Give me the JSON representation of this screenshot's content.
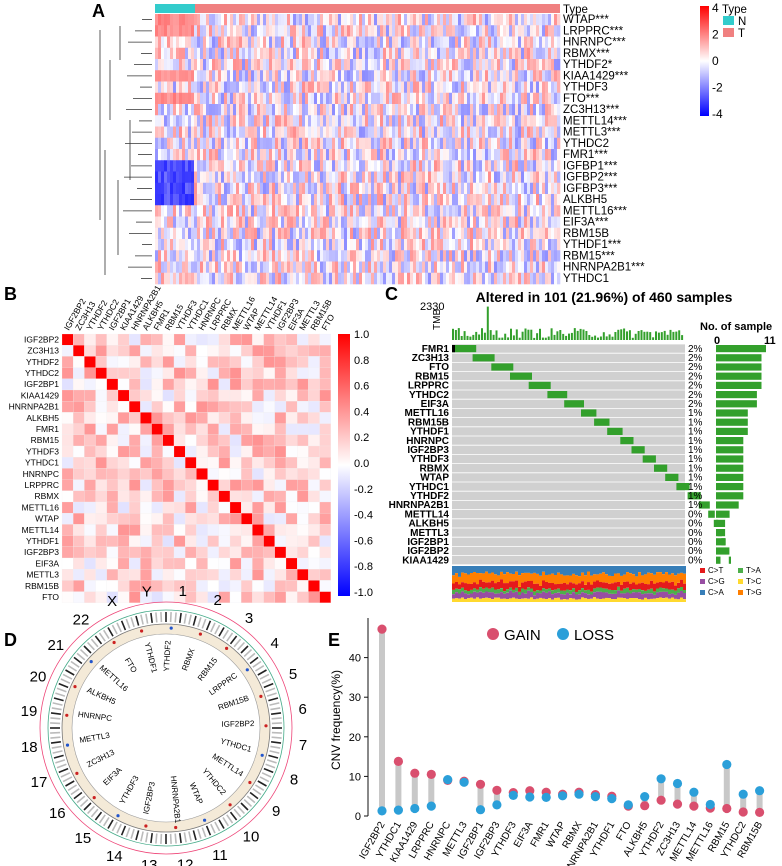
{
  "panels": {
    "A": "A",
    "B": "B",
    "C": "C",
    "D": "D",
    "E": "E"
  },
  "heatmap": {
    "type_label": "Type",
    "legend_title": "Type",
    "legend_groups": [
      {
        "label": "N",
        "color": "#33cccc"
      },
      {
        "label": "T",
        "color": "#f08080"
      }
    ],
    "colorbar_ticks": [
      "4",
      "2",
      "0",
      "-2",
      "-4"
    ],
    "genes": [
      "WTAP***",
      "LRPPRC***",
      "HNRNPC***",
      "RBMX***",
      "YTHDF2*",
      "KIAA1429***",
      "YTHDF3",
      "FTO***",
      "ZC3H13***",
      "METTL14***",
      "METTL3***",
      "YTHDC2",
      "FMR1***",
      "IGFBP1***",
      "IGFBP2***",
      "IGFBP3***",
      "ALKBH5",
      "METTL16***",
      "EIF3A***",
      "RBM15B",
      "YTHDF1***",
      "RBM15***",
      "HNRNPA2B1***",
      "YTHDC1"
    ]
  },
  "correlation": {
    "genes": [
      "IGF2BP2",
      "ZC3H13",
      "YTHDF2",
      "YTHDC2",
      "IGF2BP1",
      "KIAA1429",
      "HNRNPA2B1",
      "ALKBH5",
      "FMR1",
      "RBM15",
      "YTHDF3",
      "YTHDC1",
      "HNRNPC",
      "LRPPRC",
      "RBMX",
      "METTL16",
      "WTAP",
      "METTL14",
      "YTHDF1",
      "IGF2BP3",
      "EIF3A",
      "METTL3",
      "RBM15B",
      "FTO"
    ],
    "colorbar_ticks": [
      "1.0",
      "0.8",
      "0.6",
      "0.4",
      "0.2",
      "0.0",
      "-0.2",
      "-0.4",
      "-0.6",
      "-0.8",
      "-1.0"
    ]
  },
  "oncoplot": {
    "title": "Altered in 101 (21.96%) of 460 samples",
    "tmb_label": "TMB",
    "tmb_max": "2330",
    "count_title": "No. of sample",
    "count_min": "0",
    "count_max": "11",
    "genes": [
      "FMR1",
      "ZC3H13",
      "FTO",
      "RBM15",
      "LRPPRC",
      "YTHDC2",
      "EIF3A",
      "METTL16",
      "RBM15B",
      "YTHDF1",
      "HNRNPC",
      "IGF2BP3",
      "YTHDF3",
      "RBMX",
      "WTAP",
      "YTHDC1",
      "YTHDF2",
      "HNRNPA2B1",
      "METTL14",
      "ALKBH5",
      "METTL3",
      "IGF2BP1",
      "IGF2BP2",
      "KIAA1429"
    ],
    "percents": [
      "2%",
      "2%",
      "2%",
      "2%",
      "2%",
      "2%",
      "2%",
      "1%",
      "1%",
      "1%",
      "1%",
      "1%",
      "1%",
      "1%",
      "1%",
      "1%",
      "1%",
      "1%",
      "0%",
      "0%",
      "0%",
      "0%",
      "0%",
      "0%"
    ],
    "counts": [
      11,
      10,
      10,
      10,
      10,
      9,
      9,
      7,
      7,
      7,
      6,
      6,
      6,
      6,
      6,
      6,
      6,
      5,
      3,
      2,
      2,
      2,
      2,
      1
    ],
    "snv_legend": [
      {
        "label": "C>T",
        "color": "#e41a1c"
      },
      {
        "label": "T>A",
        "color": "#4daf4a"
      },
      {
        "label": "C>G",
        "color": "#984ea3"
      },
      {
        "label": "T>C",
        "color": "#ffd92f"
      },
      {
        "label": "C>A",
        "color": "#377eb8"
      },
      {
        "label": "T>G",
        "color": "#ff7f00"
      }
    ]
  },
  "circos": {
    "chromosomes": [
      "1",
      "2",
      "3",
      "4",
      "5",
      "6",
      "7",
      "8",
      "9",
      "10",
      "11",
      "12",
      "13",
      "14",
      "15",
      "16",
      "17",
      "18",
      "19",
      "20",
      "21",
      "22",
      "X",
      "Y"
    ],
    "gene_labels": [
      "YTHDF2",
      "RBMX",
      "RBM15",
      "LRPPRC",
      "RBM15B",
      "IGF2BP2",
      "YTHDC1",
      "METTL14",
      "YTHDC2",
      "WTAP",
      "HNRNPA2B1",
      "IGF2BP3",
      "YTHDF3",
      "EIF3A",
      "ZC3H13",
      "METTL3",
      "HNRNPC",
      "ALKBH5",
      "METTL16",
      "FTO",
      "YTHDF1"
    ]
  },
  "cnv": {
    "ylabel": "CNV frequency(%)",
    "legend": [
      {
        "label": "GAIN",
        "color": "#d94f6e"
      },
      {
        "label": "LOSS",
        "color": "#2b9fd9"
      }
    ],
    "yticks": [
      "0",
      "10",
      "20",
      "30",
      "40"
    ],
    "ylim": [
      0,
      50
    ],
    "chart_data": {
      "type": "scatter",
      "categories": [
        "IGF2BP2",
        "YTHDC1",
        "KIAA1429",
        "LRPPRC",
        "HNRNPC",
        "METTL3",
        "IGF2BP1",
        "IGF2BP3",
        "YTHDF3",
        "EIF3A",
        "FMR1",
        "WTAP",
        "RBMX",
        "HNRNPA2B1",
        "YTHDF1",
        "FTO",
        "ALKBH5",
        "YTHDF2",
        "ZC3H13",
        "METTL14",
        "METTL16",
        "RBM15",
        "YTHDC2",
        "RBM15B"
      ],
      "series": [
        {
          "name": "GAIN",
          "values": [
            47.2,
            13.8,
            10.8,
            10.5,
            9.0,
            8.8,
            8.0,
            6.5,
            5.9,
            6.4,
            6.0,
            5.5,
            6.0,
            5.4,
            5.0,
            2.5,
            2.6,
            4.0,
            3.0,
            2.5,
            2.0,
            1.9,
            1.0,
            0.9
          ]
        },
        {
          "name": "LOSS",
          "values": [
            1.3,
            1.5,
            1.9,
            2.5,
            9.2,
            8.5,
            1.6,
            2.8,
            5.2,
            4.8,
            4.7,
            5.1,
            5.5,
            4.9,
            4.4,
            2.8,
            4.9,
            9.4,
            8.2,
            6.0,
            2.9,
            13.0,
            5.5,
            6.4
          ]
        }
      ]
    }
  }
}
